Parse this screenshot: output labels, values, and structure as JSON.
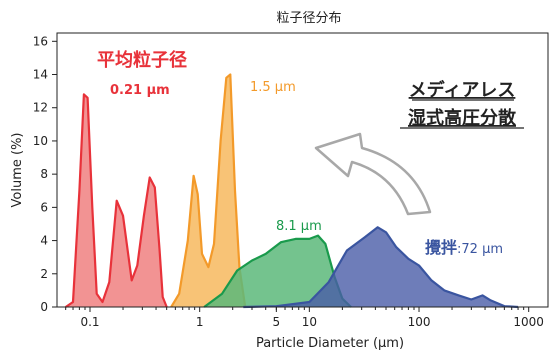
{
  "chart_data": {
    "type": "area",
    "title": "粒子径分布",
    "xlabel": "Particle Diameter (μm)",
    "ylabel": "Volume (%)",
    "xscale": "log",
    "xlim": [
      0.05,
      1500
    ],
    "ylim": [
      0,
      16.5
    ],
    "x_ticks": [
      0.1,
      1,
      5,
      10,
      100,
      1000
    ],
    "x_tick_labels": [
      "0.1",
      "1",
      "5",
      "10",
      "100",
      "1000"
    ],
    "y_ticks": [
      0,
      2,
      4,
      6,
      8,
      10,
      12,
      14,
      16
    ],
    "y_tick_labels": [
      "0",
      "2",
      "4",
      "6",
      "8",
      "10",
      "12",
      "14",
      "16"
    ],
    "grid": false,
    "series": [
      {
        "color": "#e8323a",
        "fill": "#f08080",
        "points": [
          [
            0.06,
            0
          ],
          [
            0.07,
            0.3
          ],
          [
            0.08,
            7
          ],
          [
            0.088,
            12.8
          ],
          [
            0.095,
            12.6
          ],
          [
            0.105,
            6
          ],
          [
            0.115,
            0.8
          ],
          [
            0.13,
            0.3
          ],
          [
            0.15,
            1.5
          ],
          [
            0.175,
            6.4
          ],
          [
            0.2,
            5.5
          ],
          [
            0.24,
            1.6
          ],
          [
            0.27,
            2.5
          ],
          [
            0.31,
            5.5
          ],
          [
            0.35,
            7.8
          ],
          [
            0.39,
            7.2
          ],
          [
            0.43,
            3.5
          ],
          [
            0.46,
            0.6
          ],
          [
            0.5,
            0
          ]
        ]
      },
      {
        "color": "#f39a2a",
        "fill": "#f7b85e",
        "points": [
          [
            0.55,
            0
          ],
          [
            0.65,
            0.8
          ],
          [
            0.78,
            4
          ],
          [
            0.88,
            7.9
          ],
          [
            0.96,
            6.8
          ],
          [
            1.05,
            3.2
          ],
          [
            1.2,
            2.4
          ],
          [
            1.35,
            3.8
          ],
          [
            1.55,
            10
          ],
          [
            1.75,
            13.8
          ],
          [
            1.9,
            14
          ],
          [
            2.1,
            7
          ],
          [
            2.3,
            2.4
          ],
          [
            2.6,
            0
          ]
        ]
      },
      {
        "color": "#1a9a4c",
        "fill": "#5cb87a",
        "points": [
          [
            1.1,
            0
          ],
          [
            1.6,
            0.8
          ],
          [
            2.2,
            2.2
          ],
          [
            3,
            2.8
          ],
          [
            4,
            3.2
          ],
          [
            5.5,
            3.9
          ],
          [
            7.5,
            4.1
          ],
          [
            10,
            4.1
          ],
          [
            12,
            4.3
          ],
          [
            14,
            3.8
          ],
          [
            17,
            1.8
          ],
          [
            20,
            0.5
          ],
          [
            24,
            0
          ]
        ]
      },
      {
        "color": "#3a55a0",
        "fill": "#4a5ca8",
        "fill_opacity": 0.8,
        "points": [
          [
            2.5,
            0
          ],
          [
            5,
            0.05
          ],
          [
            10,
            0.3
          ],
          [
            15,
            1.5
          ],
          [
            22,
            3.4
          ],
          [
            32,
            4.2
          ],
          [
            42,
            4.8
          ],
          [
            50,
            4.5
          ],
          [
            62,
            3.6
          ],
          [
            80,
            2.9
          ],
          [
            100,
            2.5
          ],
          [
            130,
            1.6
          ],
          [
            170,
            1
          ],
          [
            230,
            0.7
          ],
          [
            300,
            0.45
          ],
          [
            380,
            0.7
          ],
          [
            450,
            0.4
          ],
          [
            600,
            0.05
          ],
          [
            800,
            0
          ]
        ]
      }
    ],
    "annotations": {
      "avg_title": "平均粒子径",
      "red_label": "0.21 μm",
      "orange_label": "1.5 μm",
      "green_label": "8.1 μm",
      "blue_label_jp": "攪拌",
      "blue_label_value": ":72 μm",
      "media_line1": "メディアレス",
      "media_line2": "湿式高圧分散"
    }
  }
}
